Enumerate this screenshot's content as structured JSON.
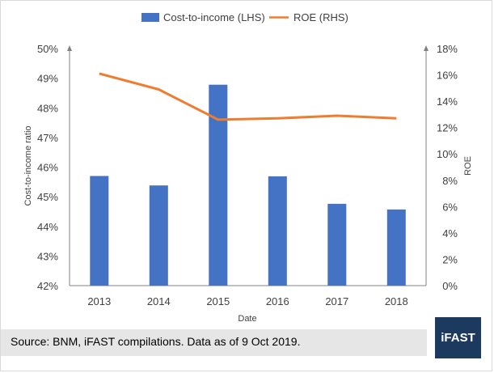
{
  "chart_data": {
    "type": "bar",
    "categories": [
      "2013",
      "2014",
      "2015",
      "2016",
      "2017",
      "2018"
    ],
    "series": [
      {
        "name": "Cost-to-income (LHS)",
        "type": "bar",
        "axis": "left",
        "color": "#4472c4",
        "values": [
          0.457,
          0.4538,
          0.4878,
          0.4569,
          0.4476,
          0.4457
        ]
      },
      {
        "name": "ROE (RHS)",
        "type": "line",
        "axis": "right",
        "color": "#ed7d31",
        "values": [
          0.161,
          0.149,
          0.126,
          0.127,
          0.129,
          0.127
        ]
      }
    ],
    "xlabel": "Date",
    "ylabel_left": "Cost-to-income ratio",
    "ylabel_right": "ROE",
    "ylim_left": [
      0.42,
      0.5
    ],
    "ylim_right": [
      0,
      0.18
    ],
    "yticks_left": [
      "42%",
      "43%",
      "44%",
      "45%",
      "46%",
      "47%",
      "48%",
      "49%",
      "50%"
    ],
    "yticks_right": [
      "0%",
      "2%",
      "4%",
      "6%",
      "8%",
      "10%",
      "12%",
      "14%",
      "16%",
      "18%"
    ],
    "legend_position": "top-center",
    "grid": false
  },
  "footer": {
    "source": "Source: BNM, iFAST compilations. Data as of 9 Oct 2019.",
    "brand": "iFAST"
  }
}
